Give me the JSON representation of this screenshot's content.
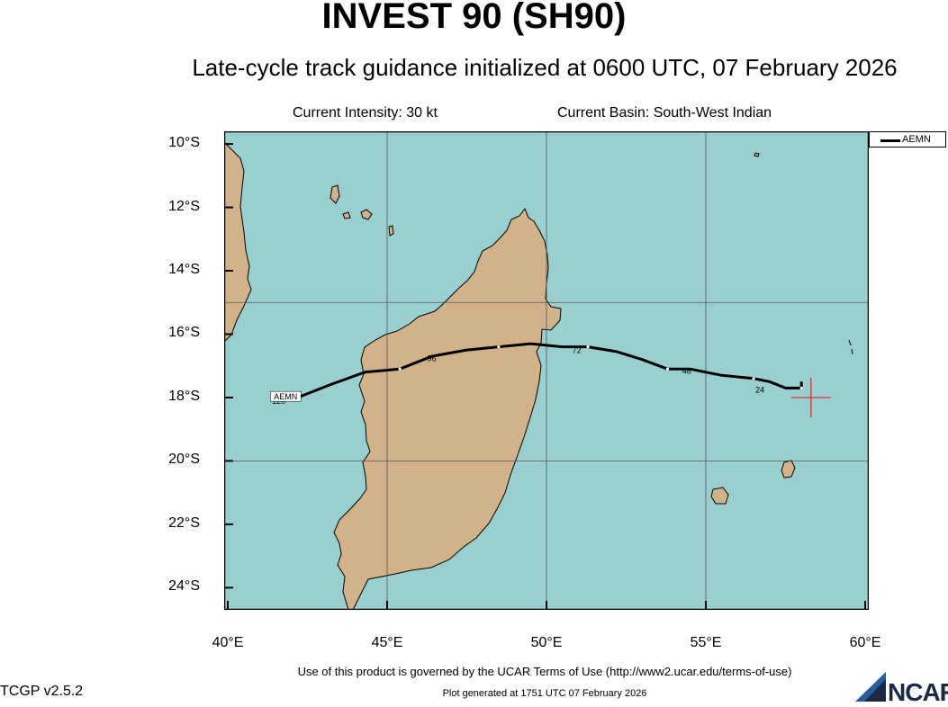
{
  "title": "INVEST 90 (SH90)",
  "subtitle": "Late-cycle track guidance initialized at 0600 UTC, 07 February 2026",
  "current_intensity": "Current Intensity: 30 kt",
  "current_basin": "Current Basin: South-West Indian",
  "legend": {
    "label": "AEMN"
  },
  "footer": {
    "terms": "Use of this product is governed by the UCAR Terms of Use (http://www2.ucar.edu/terms-of-use)",
    "version": "TCGP v2.5.2",
    "generated": "Plot generated at 1751 UTC   07 February 2026",
    "logo_text": "NCAR"
  },
  "map": {
    "lon_range": [
      40,
      60
    ],
    "lat_range": [
      -24.7,
      -9.6
    ],
    "lat_labels": [
      "10°S",
      "12°S",
      "14°S",
      "16°S",
      "18°S",
      "20°S",
      "22°S",
      "24°S"
    ],
    "lon_labels": [
      "40°E",
      "45°E",
      "50°E",
      "55°E",
      "60°E"
    ],
    "ocean_color": "#99d0cf",
    "land_color": "#d2b28a",
    "current_position": {
      "lon": 58.3,
      "lat": -18.0
    },
    "current_position_color": "#e8202a"
  },
  "chart_data": {
    "type": "line",
    "series": [
      {
        "name": "AEMN",
        "lon": [
          58.0,
          58.0,
          57.5,
          57.0,
          56.5,
          55.5,
          54.5,
          53.8,
          53.0,
          52.2,
          51.3,
          50.5,
          49.5,
          48.5,
          47.5,
          46.4,
          45.4,
          44.3,
          43.2,
          42.2
        ],
        "lat": [
          -17.5,
          -17.7,
          -17.7,
          -17.5,
          -17.4,
          -17.3,
          -17.1,
          -17.1,
          -16.8,
          -16.55,
          -16.4,
          -16.4,
          -16.3,
          -16.4,
          -16.5,
          -16.7,
          -17.1,
          -17.2,
          -17.6,
          -18.0
        ],
        "tau_labels": [
          {
            "text": "24",
            "lon": 56.7,
            "lat": -17.85
          },
          {
            "text": "48",
            "lon": 54.4,
            "lat": -17.25
          },
          {
            "text": "72",
            "lon": 50.95,
            "lat": -16.6
          },
          {
            "text": "96",
            "lon": 46.4,
            "lat": -16.85
          },
          {
            "text": "120",
            "lon": 41.6,
            "lat": -18.2
          }
        ],
        "end_label": {
          "text": "AEMN",
          "lon": 41.9,
          "lat": -17.95
        }
      }
    ]
  }
}
